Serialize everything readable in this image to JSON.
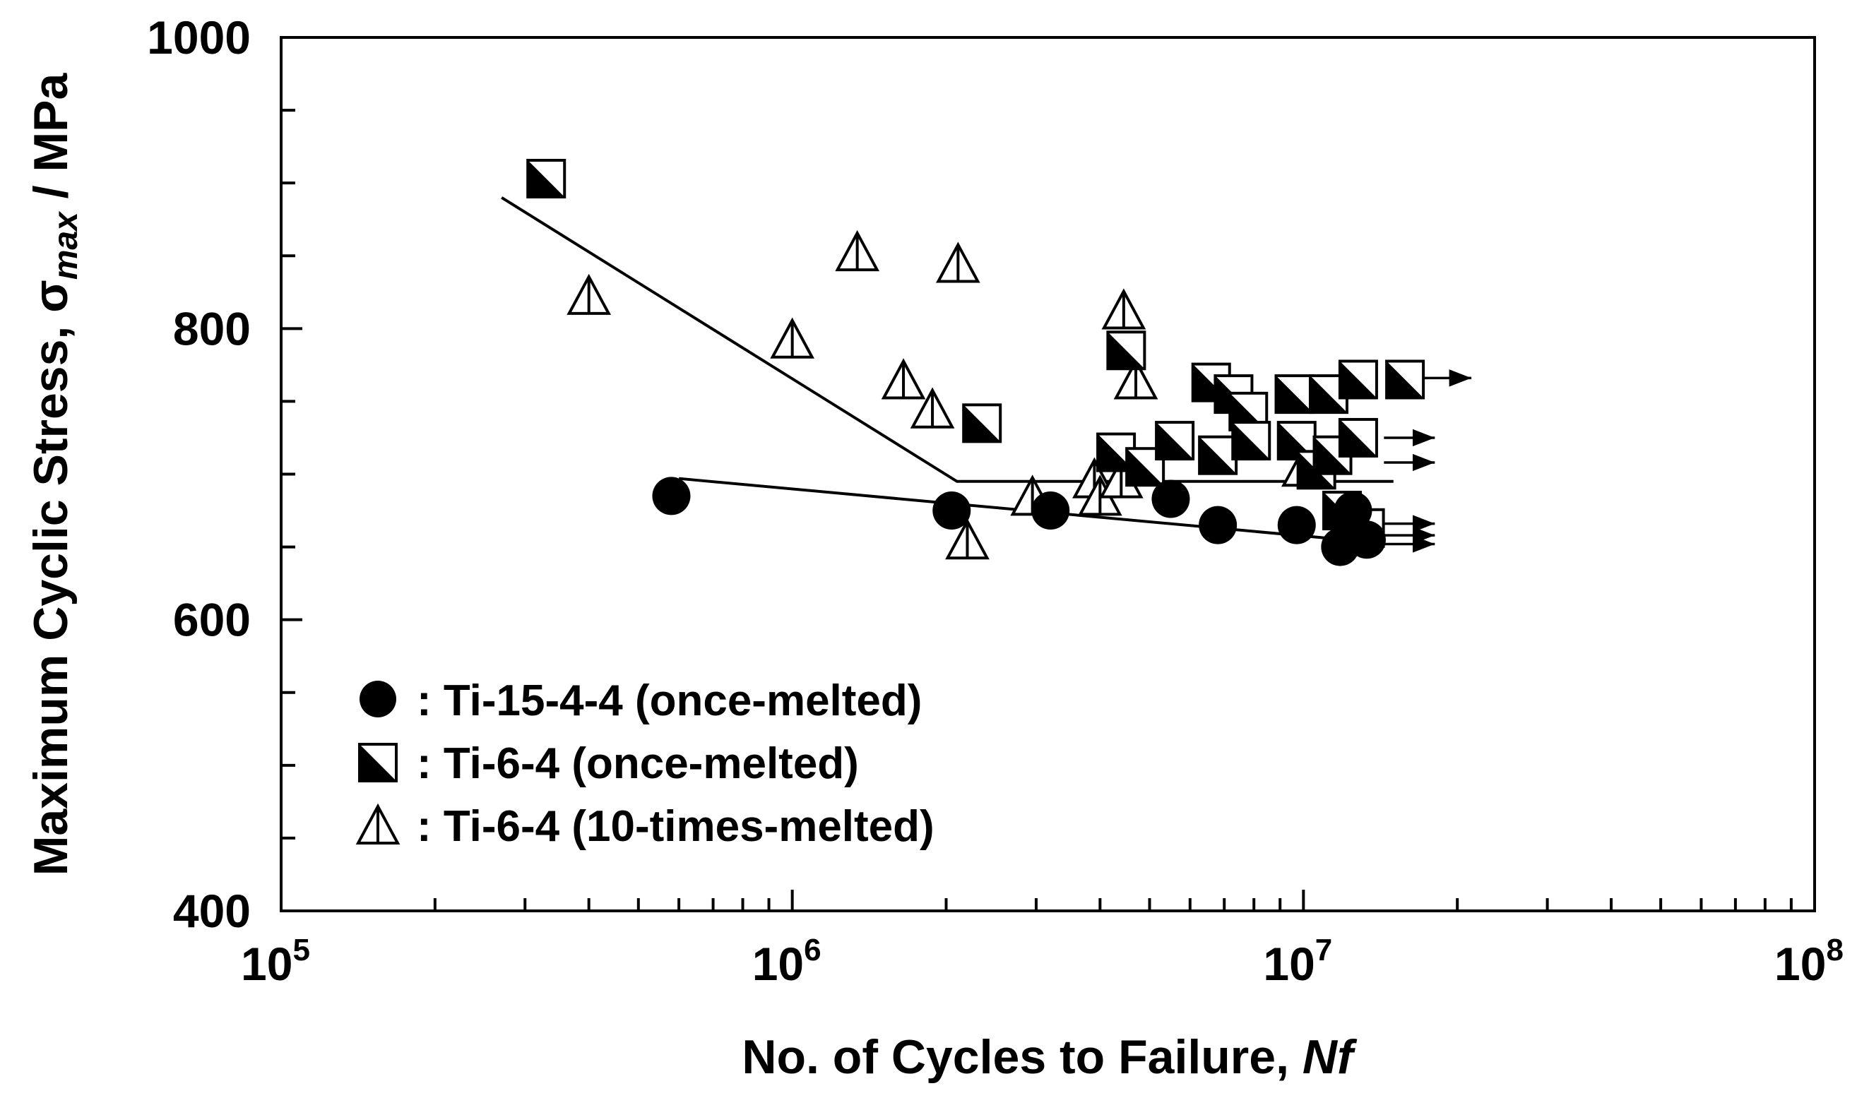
{
  "chart_data": {
    "type": "scatter",
    "title": "",
    "xlabel": "No. of Cycles to Failure, ",
    "xlabel_italic": "Nf",
    "ylabel_prefix": "Maximum Cyclic Stress, σ",
    "ylabel_sub": "max",
    "ylabel_suffix": " / MPa",
    "xscale": "log",
    "xlim": [
      100000,
      100000000
    ],
    "ylim": [
      400,
      1000
    ],
    "x_ticks": [
      {
        "value": 100000,
        "base": "10",
        "exp": "5"
      },
      {
        "value": 1000000,
        "base": "10",
        "exp": "6"
      },
      {
        "value": 10000000,
        "base": "10",
        "exp": "7"
      },
      {
        "value": 100000000,
        "base": "10",
        "exp": "8"
      }
    ],
    "y_ticks": [
      {
        "value": 400,
        "label": "400"
      },
      {
        "value": 600,
        "label": "600"
      },
      {
        "value": 800,
        "label": "800"
      },
      {
        "value": 1000,
        "label": "1000"
      }
    ],
    "y_minor_step": 50,
    "grid": false,
    "legend_position": "bottom-left",
    "series": [
      {
        "name": "Ti-15-4-4 (once-melted)",
        "legend_label": ": Ti-15-4-4 (once-melted)",
        "marker": "filled-circle",
        "points": [
          {
            "x": 580000,
            "y": 685
          },
          {
            "x": 2050000,
            "y": 675
          },
          {
            "x": 3200000,
            "y": 675
          },
          {
            "x": 5500000,
            "y": 683
          },
          {
            "x": 6800000,
            "y": 665
          },
          {
            "x": 9700000,
            "y": 665
          },
          {
            "x": 11800000,
            "y": 650
          },
          {
            "x": 12500000,
            "y": 675
          },
          {
            "x": 13300000,
            "y": 655
          }
        ],
        "fit_line": [
          {
            "x": 600000,
            "y": 697
          },
          {
            "x": 12000000,
            "y": 655
          }
        ]
      },
      {
        "name": "Ti-6-4 (once-melted)",
        "legend_label": ": Ti-6-4 (once-melted)",
        "marker": "half-filled-square",
        "points": [
          {
            "x": 330000,
            "y": 903
          },
          {
            "x": 2350000,
            "y": 735
          },
          {
            "x": 4500000,
            "y": 785
          },
          {
            "x": 4300000,
            "y": 715
          },
          {
            "x": 4900000,
            "y": 705
          },
          {
            "x": 5600000,
            "y": 723
          },
          {
            "x": 6600000,
            "y": 763
          },
          {
            "x": 6800000,
            "y": 713
          },
          {
            "x": 7300000,
            "y": 755
          },
          {
            "x": 7800000,
            "y": 743
          },
          {
            "x": 7900000,
            "y": 723
          },
          {
            "x": 9600000,
            "y": 755
          },
          {
            "x": 9700000,
            "y": 723
          },
          {
            "x": 10600000,
            "y": 703
          },
          {
            "x": 11200000,
            "y": 755
          },
          {
            "x": 11400000,
            "y": 713
          },
          {
            "x": 11900000,
            "y": 675
          },
          {
            "x": 12800000,
            "y": 765
          },
          {
            "x": 12800000,
            "y": 725
          },
          {
            "x": 13200000,
            "y": 663
          },
          {
            "x": 15800000,
            "y": 765
          }
        ],
        "fit_line": [
          {
            "x": 270000,
            "y": 890
          },
          {
            "x": 2100000,
            "y": 695
          },
          {
            "x": 15000000,
            "y": 695
          }
        ]
      },
      {
        "name": "Ti-6-4 (10-times-melted)",
        "legend_label": ": Ti-6-4 (10-times-melted)",
        "marker": "half-filled-triangle",
        "points": [
          {
            "x": 400000,
            "y": 823
          },
          {
            "x": 1000000,
            "y": 793
          },
          {
            "x": 1340000,
            "y": 853
          },
          {
            "x": 1650000,
            "y": 765
          },
          {
            "x": 1880000,
            "y": 745
          },
          {
            "x": 2110000,
            "y": 845
          },
          {
            "x": 2200000,
            "y": 655
          },
          {
            "x": 2950000,
            "y": 685
          },
          {
            "x": 3900000,
            "y": 697
          },
          {
            "x": 4000000,
            "y": 685
          },
          {
            "x": 4400000,
            "y": 697
          },
          {
            "x": 4450000,
            "y": 813
          },
          {
            "x": 4700000,
            "y": 765
          },
          {
            "x": 10000000,
            "y": 705
          }
        ]
      }
    ],
    "runouts": [
      {
        "x": 15800000,
        "y": 766
      },
      {
        "x": 13400000,
        "y": 725
      },
      {
        "x": 13400000,
        "y": 708
      },
      {
        "x": 13400000,
        "y": 666
      },
      {
        "x": 13400000,
        "y": 658
      },
      {
        "x": 13400000,
        "y": 652
      }
    ]
  }
}
